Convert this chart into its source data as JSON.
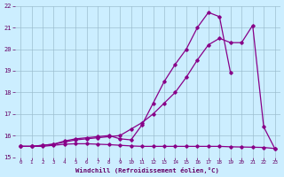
{
  "xlabel": "Windchill (Refroidissement éolien,°C)",
  "background_color": "#cceeff",
  "line_color": "#880088",
  "grid_color": "#99bbcc",
  "xlim": [
    -0.5,
    23.5
  ],
  "ylim": [
    15,
    22
  ],
  "xticks": [
    0,
    1,
    2,
    3,
    4,
    5,
    6,
    7,
    8,
    9,
    10,
    11,
    12,
    13,
    14,
    15,
    16,
    17,
    18,
    19,
    20,
    21,
    22,
    23
  ],
  "yticks": [
    15,
    16,
    17,
    18,
    19,
    20,
    21,
    22
  ],
  "line1_x": [
    0,
    1,
    2,
    3,
    4,
    5,
    6,
    7,
    8,
    9,
    10,
    11,
    12,
    13,
    14,
    15,
    16,
    17,
    18,
    19,
    20,
    21,
    22,
    23
  ],
  "line1_y": [
    15.5,
    15.5,
    15.5,
    15.55,
    15.6,
    15.62,
    15.62,
    15.6,
    15.58,
    15.55,
    15.52,
    15.5,
    15.5,
    15.5,
    15.5,
    15.5,
    15.5,
    15.5,
    15.5,
    15.48,
    15.47,
    15.46,
    15.45,
    15.4
  ],
  "line2_x": [
    0,
    1,
    2,
    3,
    4,
    5,
    6,
    7,
    8,
    9,
    10,
    11,
    12,
    13,
    14,
    15,
    16,
    17,
    18,
    19,
    20,
    21,
    22,
    23
  ],
  "line2_y": [
    15.5,
    15.5,
    15.55,
    15.6,
    15.7,
    15.8,
    15.85,
    15.9,
    15.95,
    16.0,
    16.3,
    16.6,
    17.0,
    17.5,
    18.0,
    18.7,
    19.5,
    20.2,
    20.5,
    20.3,
    20.3,
    21.1,
    16.4,
    15.4
  ],
  "line3_x": [
    0,
    1,
    2,
    3,
    4,
    5,
    6,
    7,
    8,
    9,
    10,
    11,
    12,
    13,
    14,
    15,
    16,
    17,
    18,
    19,
    20,
    21,
    22,
    23
  ],
  "line3_y": [
    15.5,
    15.5,
    15.55,
    15.6,
    15.75,
    15.85,
    15.9,
    15.95,
    16.0,
    15.85,
    15.8,
    16.5,
    17.5,
    18.5,
    19.3,
    20.0,
    21.0,
    21.7,
    21.5,
    18.9,
    null,
    null,
    null,
    null
  ]
}
